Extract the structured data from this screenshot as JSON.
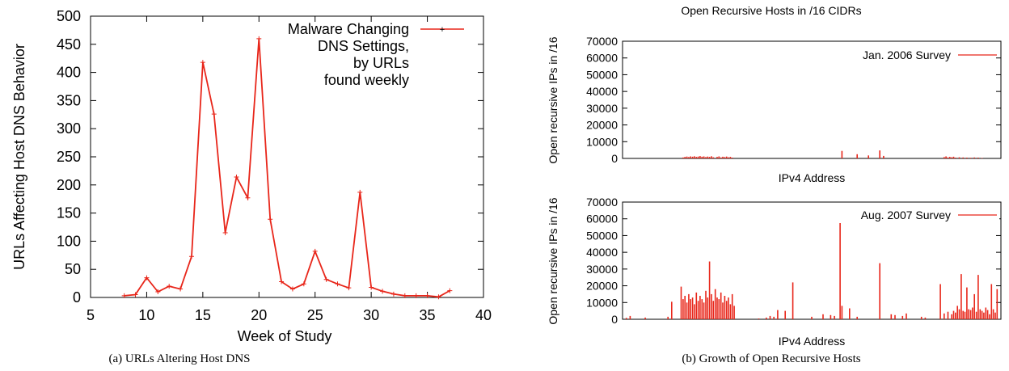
{
  "chart_data": [
    {
      "type": "line",
      "title": "",
      "xlabel": "Week of Study",
      "ylabel": "URLs Affecting Host DNS Behavior",
      "xlim": [
        5,
        40
      ],
      "ylim": [
        0,
        500
      ],
      "x_ticks": [
        "5",
        "10",
        "15",
        "20",
        "25",
        "30",
        "35",
        "40"
      ],
      "y_ticks": [
        "0",
        "50",
        "100",
        "150",
        "200",
        "250",
        "300",
        "350",
        "400",
        "450",
        "500"
      ],
      "grid": false,
      "legend_position": "top-right",
      "legend_lines": [
        "Malware Changing",
        "DNS Settings,",
        "by URLs",
        "found weekly"
      ],
      "color": "#e8261a",
      "series": [
        {
          "name": "Malware Changing DNS Settings, by URLs found weekly",
          "x": [
            8,
            9,
            10,
            11,
            12,
            13,
            14,
            15,
            16,
            17,
            18,
            19,
            20,
            21,
            22,
            23,
            24,
            25,
            26,
            27,
            28,
            29,
            30,
            31,
            32,
            33,
            34,
            35,
            36,
            37
          ],
          "y": [
            3,
            5,
            35,
            10,
            20,
            15,
            73,
            418,
            326,
            115,
            214,
            177,
            460,
            139,
            28,
            15,
            24,
            82,
            32,
            24,
            17,
            187,
            18,
            11,
            6,
            3,
            3,
            3,
            1,
            12
          ]
        }
      ],
      "caption": "(a)  URLs Altering Host DNS"
    },
    {
      "type": "bar",
      "title": "Open Recursive Hosts in /16 CIDRs",
      "ylabel": "Open recursive IPs in /16",
      "grid": false,
      "color": "#e8261a",
      "panels": [
        {
          "name": "Jan. 2006 Survey",
          "xlabel": "IPv4 Address",
          "ylim": [
            0,
            70000
          ],
          "y_ticks": [
            "0",
            "10000",
            "20000",
            "30000",
            "40000",
            "50000",
            "60000",
            "70000"
          ],
          "legend_position": "top-right",
          "x": [
            0.16,
            0.165,
            0.17,
            0.175,
            0.18,
            0.185,
            0.19,
            0.195,
            0.2,
            0.205,
            0.21,
            0.215,
            0.22,
            0.225,
            0.23,
            0.235,
            0.24,
            0.25,
            0.255,
            0.26,
            0.265,
            0.27,
            0.275,
            0.28,
            0.285,
            0.29,
            0.58,
            0.62,
            0.65,
            0.68,
            0.69,
            0.85,
            0.855,
            0.86,
            0.865,
            0.87,
            0.875,
            0.88,
            0.89,
            0.9,
            0.91,
            0.92,
            0.93,
            0.94,
            0.95
          ],
          "values": [
            600,
            900,
            1100,
            800,
            1200,
            1000,
            1300,
            900,
            1100,
            1400,
            1000,
            1200,
            800,
            1100,
            900,
            1300,
            700,
            900,
            1200,
            600,
            1000,
            800,
            1100,
            700,
            900,
            500,
            4500,
            2500,
            1800,
            4800,
            1500,
            800,
            1200,
            600,
            900,
            700,
            1000,
            500,
            700,
            600,
            500,
            400,
            600,
            500,
            300
          ]
        },
        {
          "name": "Aug. 2007 Survey",
          "xlabel": "IPv4 Address",
          "ylim": [
            0,
            70000
          ],
          "y_ticks": [
            "0",
            "10000",
            "20000",
            "30000",
            "40000",
            "50000",
            "60000",
            "70000"
          ],
          "legend_position": "top-right",
          "x": [
            0.01,
            0.02,
            0.06,
            0.12,
            0.13,
            0.155,
            0.16,
            0.165,
            0.17,
            0.175,
            0.18,
            0.185,
            0.19,
            0.195,
            0.2,
            0.205,
            0.21,
            0.215,
            0.22,
            0.225,
            0.23,
            0.235,
            0.24,
            0.245,
            0.25,
            0.255,
            0.26,
            0.265,
            0.27,
            0.275,
            0.28,
            0.285,
            0.29,
            0.295,
            0.36,
            0.38,
            0.39,
            0.4,
            0.41,
            0.43,
            0.45,
            0.5,
            0.53,
            0.55,
            0.56,
            0.575,
            0.58,
            0.6,
            0.62,
            0.68,
            0.71,
            0.72,
            0.74,
            0.75,
            0.79,
            0.8,
            0.84,
            0.85,
            0.86,
            0.87,
            0.875,
            0.88,
            0.885,
            0.89,
            0.895,
            0.9,
            0.905,
            0.91,
            0.915,
            0.92,
            0.925,
            0.93,
            0.935,
            0.94,
            0.945,
            0.95,
            0.955,
            0.96,
            0.965,
            0.97,
            0.975,
            0.98,
            0.985,
            0.99
          ],
          "values": [
            800,
            2000,
            1000,
            1500,
            10500,
            19500,
            12000,
            14000,
            10000,
            15000,
            12000,
            13000,
            9000,
            16000,
            11000,
            14000,
            12000,
            10000,
            17000,
            13000,
            34500,
            15000,
            11000,
            18000,
            13000,
            12000,
            16000,
            10000,
            14000,
            11000,
            13000,
            9000,
            15000,
            8000,
            500,
            1000,
            2000,
            1500,
            5500,
            5000,
            22000,
            1500,
            3000,
            2500,
            2000,
            59500,
            8000,
            6500,
            1500,
            33500,
            3000,
            2500,
            2000,
            3500,
            1500,
            1000,
            21000,
            3500,
            4500,
            3000,
            5000,
            4000,
            8000,
            6000,
            27000,
            5000,
            4500,
            19000,
            6000,
            5500,
            7000,
            15000,
            4500,
            26500,
            6000,
            5000,
            4000,
            7000,
            5500,
            3000,
            21000,
            6000,
            4000,
            18000
          ]
        }
      ],
      "caption": "(b)  Growth of Open Recursive Hosts"
    }
  ]
}
